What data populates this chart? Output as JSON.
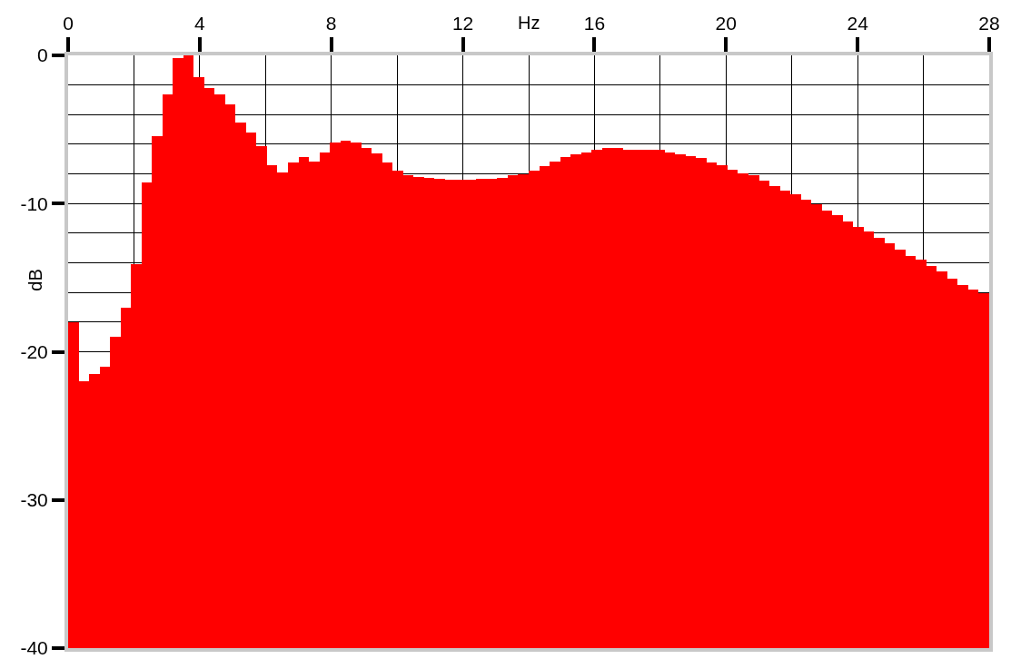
{
  "chart_data": {
    "type": "bar",
    "xlabel": "Hz",
    "ylabel": "dB",
    "color": "#ff0000",
    "x": [
      0.159,
      0.477,
      0.795,
      1.114,
      1.432,
      1.75,
      2.068,
      2.386,
      2.705,
      3.023,
      3.341,
      3.659,
      3.977,
      4.295,
      4.614,
      4.932,
      5.25,
      5.568,
      5.886,
      6.205,
      6.523,
      6.841,
      7.159,
      7.477,
      7.795,
      8.114,
      8.432,
      8.75,
      9.068,
      9.386,
      9.705,
      10.023,
      10.341,
      10.659,
      10.977,
      11.295,
      11.614,
      11.932,
      12.25,
      12.568,
      12.886,
      13.205,
      13.523,
      13.841,
      14.159,
      14.477,
      14.795,
      15.114,
      15.432,
      15.75,
      16.068,
      16.386,
      16.705,
      17.023,
      17.341,
      17.659,
      17.977,
      18.295,
      18.614,
      18.932,
      19.25,
      19.568,
      19.886,
      20.205,
      20.523,
      20.841,
      21.159,
      21.477,
      21.795,
      22.114,
      22.432,
      22.75,
      23.068,
      23.386,
      23.705,
      24.023,
      24.341,
      24.659,
      24.977,
      25.295,
      25.614,
      25.932,
      26.25,
      26.568,
      26.886,
      27.205,
      27.523,
      27.841
    ],
    "base": [
      -40,
      -40,
      -40,
      -40,
      -40,
      -40,
      -40,
      -40,
      -40,
      -40,
      -40,
      -40,
      -40,
      -40,
      -40,
      -40,
      -40,
      -40,
      -40,
      -40,
      -40,
      -40,
      -40,
      -40,
      -40,
      -40,
      -40,
      -40,
      -40,
      -40,
      -40,
      -40,
      -40,
      -40,
      -40,
      -40,
      -40,
      -40,
      -40,
      -40,
      -40,
      -40,
      -40,
      -40,
      -40,
      -40,
      -40,
      -40,
      -40,
      -40,
      -40,
      -40,
      -40,
      -40,
      -40,
      -40,
      -40,
      -40,
      -40,
      -40,
      -40,
      -40,
      -40,
      -40,
      -40,
      -40,
      -40,
      -40,
      -40,
      -40,
      -40,
      -40,
      -40,
      -40,
      -40,
      -40,
      -40,
      -40,
      -40,
      -40,
      -40,
      -40,
      -40,
      -40,
      -40,
      -40,
      -40,
      -40
    ],
    "values": [
      22.0,
      18.0,
      18.5,
      19.0,
      21.0,
      23.0,
      25.9,
      31.4,
      34.55,
      37.35,
      39.8,
      40.0,
      38.55,
      37.8,
      37.35,
      36.7,
      35.45,
      34.8,
      33.9,
      32.6,
      32.1,
      32.8,
      33.15,
      32.85,
      33.45,
      34.15,
      34.25,
      34.15,
      33.75,
      33.4,
      32.75,
      32.2,
      31.9,
      31.8,
      31.75,
      31.65,
      31.6,
      31.6,
      31.6,
      31.65,
      31.7,
      31.75,
      31.9,
      32.0,
      32.25,
      32.5,
      32.85,
      33.15,
      33.3,
      33.45,
      33.65,
      33.75,
      33.75,
      33.65,
      33.65,
      33.65,
      33.65,
      33.45,
      33.3,
      33.2,
      33.05,
      32.8,
      32.6,
      32.3,
      32.05,
      31.9,
      31.55,
      31.15,
      30.85,
      30.6,
      30.25,
      29.95,
      29.55,
      29.2,
      28.8,
      28.45,
      28.1,
      27.7,
      27.35,
      26.9,
      26.45,
      26.2,
      25.8,
      25.4,
      24.95,
      24.5,
      24.2,
      23.95
    ],
    "xlim": [
      0,
      28
    ],
    "xticks": [
      0,
      4,
      8,
      12,
      16,
      20,
      24,
      28
    ],
    "ylim": [
      -40,
      0
    ],
    "yticks": [
      -40,
      -30,
      -20,
      -10,
      0
    ],
    "grid": true
  }
}
